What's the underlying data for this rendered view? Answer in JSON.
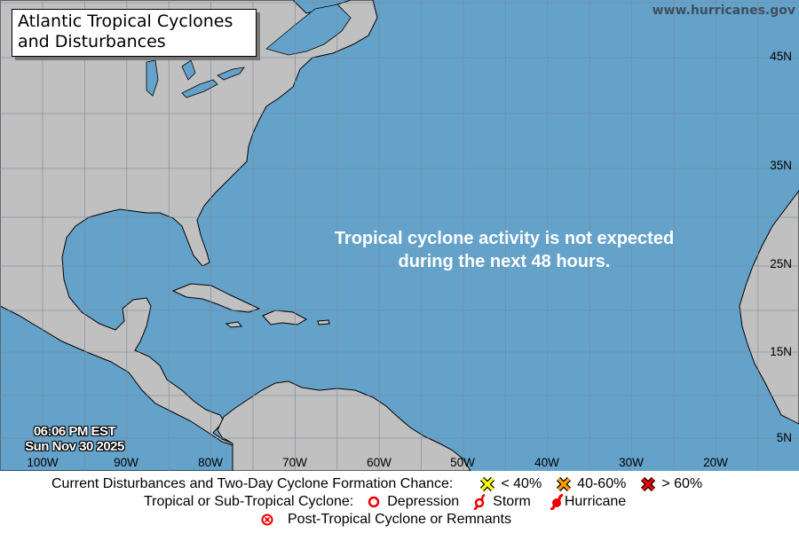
{
  "title": "Atlantic Tropical Cyclones and Disturbances",
  "title_lines": [
    "Atlantic Tropical Cyclones",
    "and Disturbances"
  ],
  "website": "www.hurricanes.gov",
  "message_lines": [
    "Tropical cyclone activity is not expected",
    "during the next 48 hours."
  ],
  "timestamp": {
    "time": "06:06 PM EST",
    "date": "Sun Nov 30 2025"
  },
  "longitude_labels": [
    "100W",
    "90W",
    "80W",
    "70W",
    "60W",
    "50W",
    "40W",
    "30W",
    "20W"
  ],
  "latitude_labels": [
    "45N",
    "35N",
    "25N",
    "15N",
    "5N"
  ],
  "colors": {
    "water": "#64a2ca",
    "land": "#c0c0c0",
    "grid": "#7b8a99",
    "low": "#ffff00",
    "medium": "#ff9900",
    "high": "#ee0000",
    "cyclone": "#ee0000"
  },
  "legend": {
    "formation_label": "Current Disturbances and Two-Day Cyclone Formation Chance:",
    "low": "< 40%",
    "medium": "40-60%",
    "high": "> 60%",
    "cyclone_label": "Tropical or Sub-Tropical Cyclone:",
    "depression": "Depression",
    "storm": "Storm",
    "hurricane": "Hurricane",
    "post_tropical": "Post-Tropical Cyclone or Remnants"
  }
}
